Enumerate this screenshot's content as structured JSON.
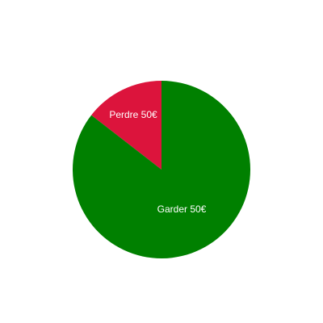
{
  "chart_data": {
    "type": "pie",
    "labels": [
      "Perdre 50€",
      "Garder 50€"
    ],
    "values": [
      14.5,
      85.5
    ],
    "colors": [
      "#dc143c",
      "#008000"
    ],
    "start_angle_deg": 0,
    "direction": "counterclockwise",
    "legend": "none"
  }
}
